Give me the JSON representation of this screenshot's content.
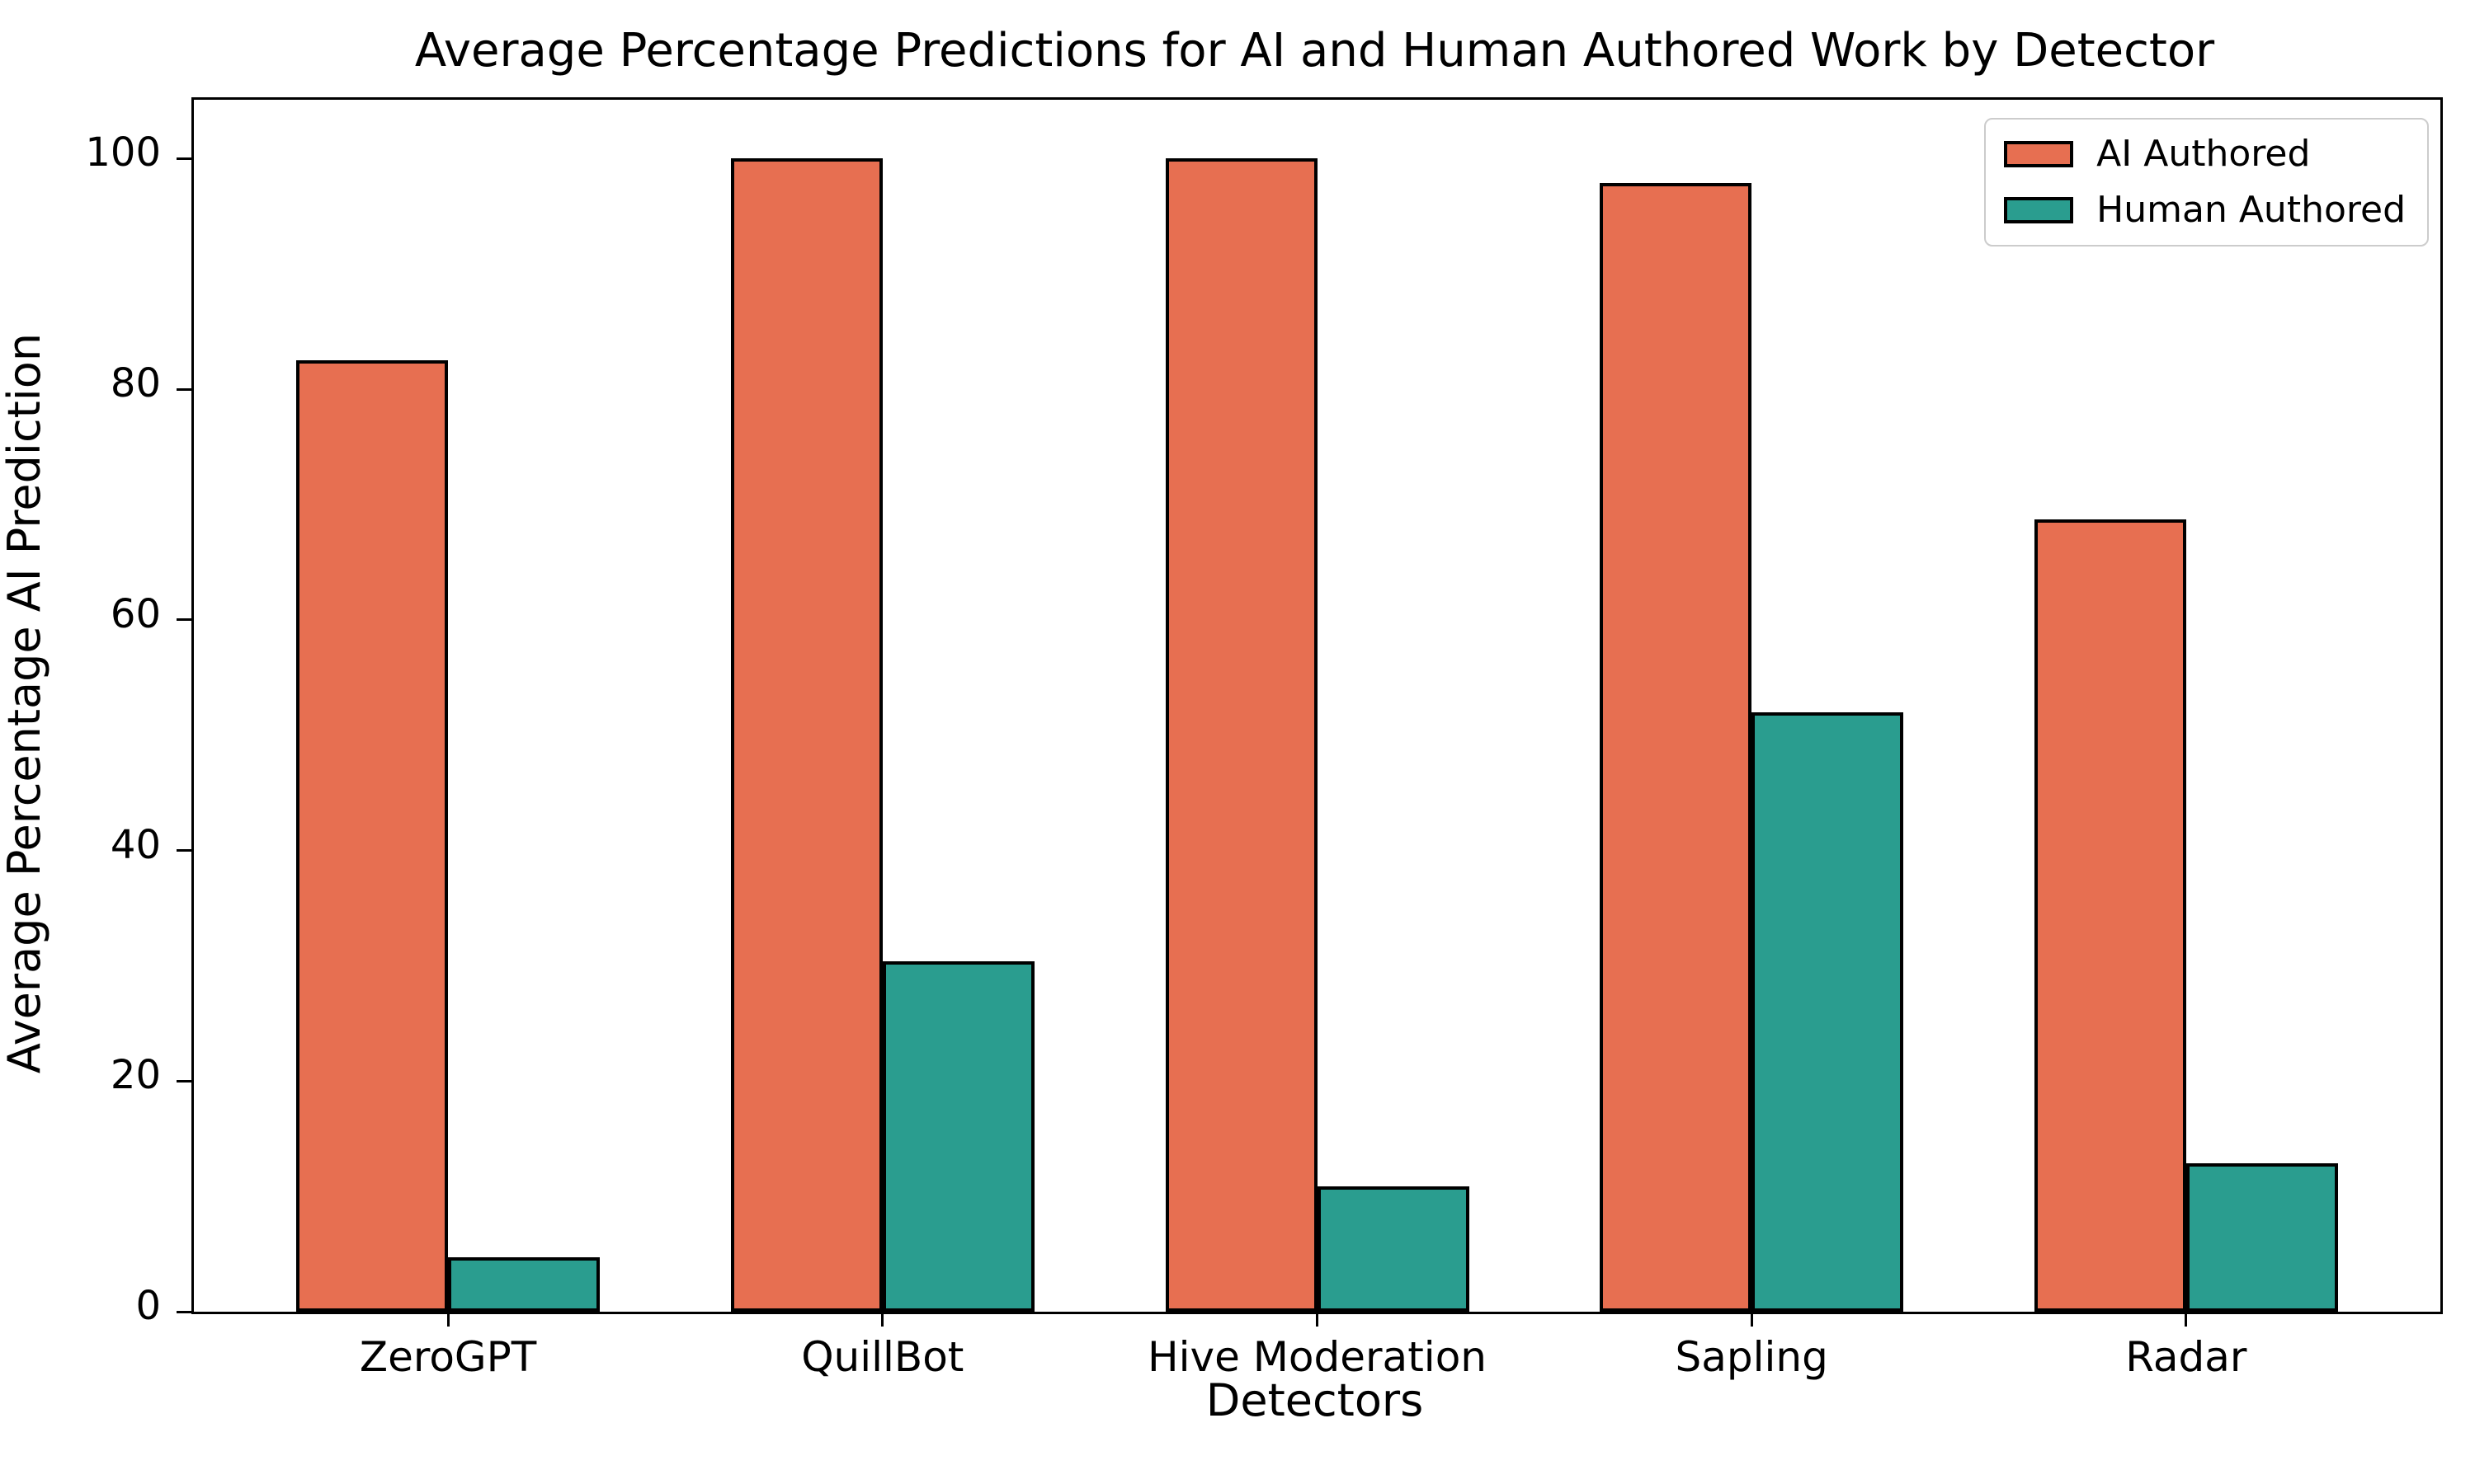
{
  "figure": {
    "background": "#ffffff"
  },
  "chart_data": {
    "type": "bar",
    "title": "Average Percentage Predictions for AI and Human Authored Work by Detector",
    "xlabel": "Detectors",
    "ylabel": "Average Percentage AI Prediction",
    "categories": [
      "ZeroGPT",
      "QuillBot",
      "Hive Moderation",
      "Sapling",
      "Radar"
    ],
    "series": [
      {
        "name": "AI Authored",
        "color": "#E76F51",
        "values": [
          82.5,
          100.0,
          100.0,
          97.9,
          68.7
        ]
      },
      {
        "name": "Human Authored",
        "color": "#2A9D8F",
        "values": [
          4.7,
          30.4,
          10.9,
          52.0,
          12.9
        ]
      }
    ],
    "ylim": [
      0,
      105
    ],
    "yticks": [
      0,
      20,
      40,
      60,
      80,
      100
    ],
    "bar_edge_color": "#000000",
    "grid": false,
    "legend": {
      "position": "upper right",
      "entries": [
        "AI Authored",
        "Human Authored"
      ]
    }
  }
}
